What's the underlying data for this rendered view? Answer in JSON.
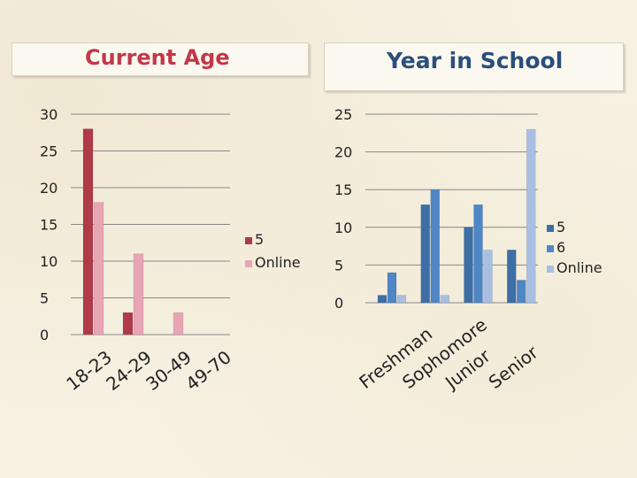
{
  "colors": {
    "dark_red": "#b03a48",
    "light_red": "#e8a5b4",
    "dark_blue": "#3e6ea6",
    "mid_blue": "#4f86c6",
    "light_blue": "#a9bfe1",
    "axis": "#888888",
    "title_red": "#c0394b",
    "title_blue": "#2b4e7b"
  },
  "chart_data": [
    {
      "type": "bar",
      "title": "Current Age",
      "categories": [
        "18-23",
        "24-29",
        "30-49",
        "49-70"
      ],
      "ylim": [
        0,
        30
      ],
      "yticks": [
        "0",
        "5",
        "10",
        "15",
        "20",
        "25",
        "30"
      ],
      "grid": false,
      "legend_placement": "right",
      "series": [
        {
          "name": "5",
          "values": [
            28,
            3,
            0,
            0
          ]
        },
        {
          "name": "Online",
          "values": [
            18,
            11,
            3,
            0
          ]
        }
      ]
    },
    {
      "type": "bar",
      "title": "Year in School",
      "categories": [
        "Freshman",
        "Sophomore",
        "Junior",
        "Senior"
      ],
      "ylim": [
        0,
        25
      ],
      "yticks": [
        "0",
        "5",
        "10",
        "15",
        "20",
        "25"
      ],
      "grid": false,
      "legend_placement": "right",
      "series": [
        {
          "name": "5",
          "values": [
            1,
            13,
            10,
            7
          ]
        },
        {
          "name": "6",
          "values": [
            4,
            15,
            13,
            3
          ]
        },
        {
          "name": "Online",
          "values": [
            1,
            1,
            7,
            23
          ]
        }
      ]
    }
  ]
}
